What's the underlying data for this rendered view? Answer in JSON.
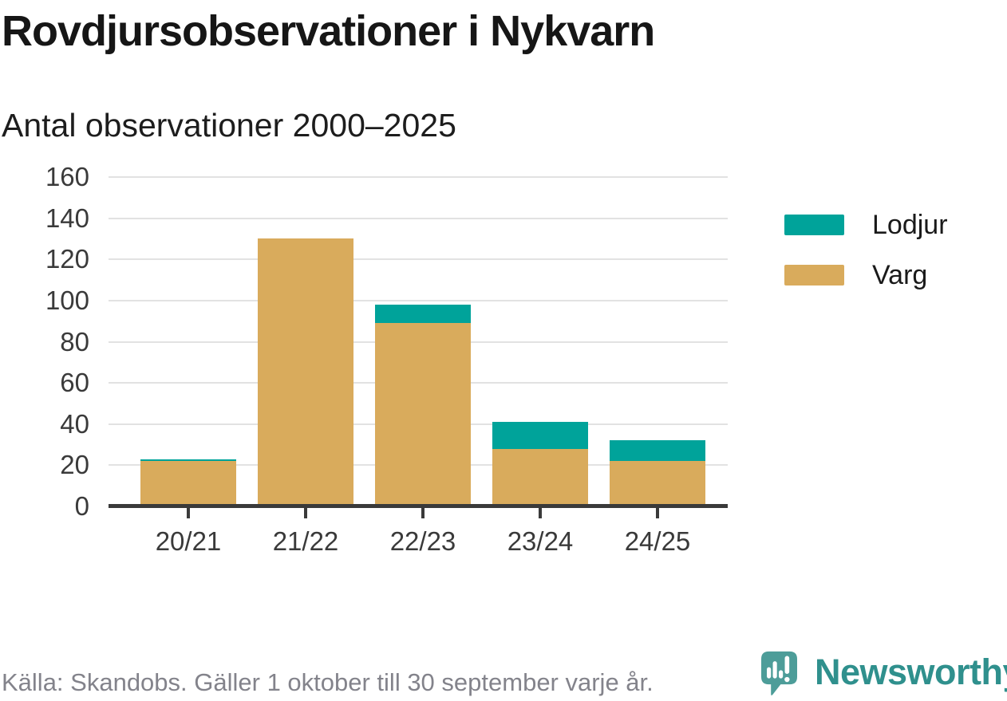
{
  "header": {
    "title": "Rovdjursobservationer i Nykvarn",
    "subtitle": "Antal observationer 2000–2025"
  },
  "chart_data": {
    "type": "bar",
    "stacked": true,
    "title": "Rovdjursobservationer i Nykvarn",
    "subtitle": "Antal observationer 2000–2025",
    "xlabel": "",
    "ylabel": "",
    "categories": [
      "20/21",
      "21/22",
      "22/23",
      "23/24",
      "24/25"
    ],
    "series": [
      {
        "name": "Varg",
        "color": "#d9ab5c",
        "values": [
          22,
          130,
          89,
          28,
          22
        ]
      },
      {
        "name": "Lodjur",
        "color": "#00a39a",
        "values": [
          1,
          0,
          9,
          13,
          10
        ]
      }
    ],
    "totals": [
      23,
      130,
      98,
      41,
      32
    ],
    "ylim": [
      0,
      160
    ],
    "yticks": [
      0,
      20,
      40,
      60,
      80,
      100,
      120,
      140,
      160
    ],
    "grid": true,
    "legend_position": "right"
  },
  "legend": {
    "items": [
      {
        "label": "Lodjur",
        "color": "#00a39a"
      },
      {
        "label": "Varg",
        "color": "#d9ab5c"
      }
    ]
  },
  "footer": {
    "source": "Källa: Skandobs. Gäller 1 oktober till 30 september varje år.",
    "brand": "Newsworthy",
    "logo_icon": "newsworthy-bubble-chart-icon"
  },
  "colors": {
    "teal": "#00a39a",
    "gold": "#d9ab5c",
    "axis": "#3a3a3a",
    "grid": "#e2e2e2",
    "text": "#161616",
    "muted_text": "#83838b",
    "logo_teal": "#4d9d99",
    "brand_text_teal": "#2f908d"
  }
}
